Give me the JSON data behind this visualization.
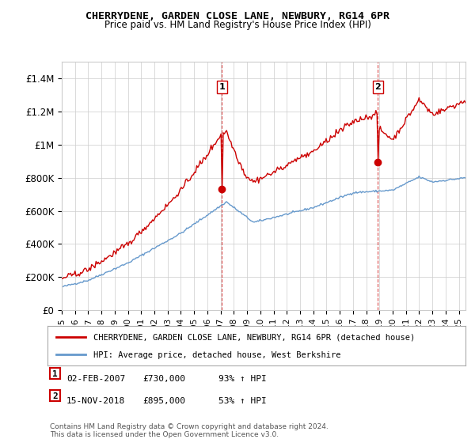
{
  "title": "CHERRYDENE, GARDEN CLOSE LANE, NEWBURY, RG14 6PR",
  "subtitle": "Price paid vs. HM Land Registry's House Price Index (HPI)",
  "legend_line1": "CHERRYDENE, GARDEN CLOSE LANE, NEWBURY, RG14 6PR (detached house)",
  "legend_line2": "HPI: Average price, detached house, West Berkshire",
  "sale1_label": "1",
  "sale1_date": "02-FEB-2007",
  "sale1_price": "£730,000",
  "sale1_hpi": "93% ↑ HPI",
  "sale1_x": 2007.09,
  "sale1_y": 730000,
  "sale2_label": "2",
  "sale2_date": "15-NOV-2018",
  "sale2_price": "£895,000",
  "sale2_hpi": "53% ↑ HPI",
  "sale2_x": 2018.88,
  "sale2_y": 895000,
  "red_color": "#cc0000",
  "blue_color": "#6699cc",
  "background_color": "#ffffff",
  "ylim": [
    0,
    1500000
  ],
  "xlim": [
    1995.0,
    2025.5
  ],
  "footer": "Contains HM Land Registry data © Crown copyright and database right 2024.\nThis data is licensed under the Open Government Licence v3.0."
}
